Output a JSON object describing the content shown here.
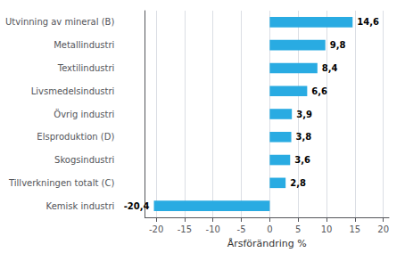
{
  "chart_data": {
    "type": "bar",
    "orientation": "horizontal",
    "categories": [
      "Utvinning av mineral (B)",
      "Metallindustri",
      "Textilindustri",
      "Livsmedelsindustri",
      "Övrig industri",
      "Elsproduktion (D)",
      "Skogsindustri",
      "Tillverkningen totalt (C)",
      "Kemisk industri"
    ],
    "values": [
      14.6,
      9.8,
      8.4,
      6.6,
      3.9,
      3.8,
      3.6,
      2.8,
      -20.4
    ],
    "value_labels": [
      "14,6",
      "9,8",
      "8,4",
      "6,6",
      "3,9",
      "3,8",
      "3,6",
      "2,8",
      "-20,4"
    ],
    "data_labels": true,
    "color": "#29abe2",
    "xlabel": "Årsförändring %",
    "xlim": [
      -22,
      21
    ],
    "xticks": [
      -20,
      -15,
      -10,
      -5,
      0,
      5,
      10,
      15,
      20
    ],
    "grid": true
  }
}
